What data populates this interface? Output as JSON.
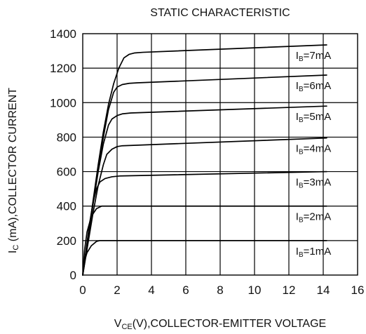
{
  "chart_data": {
    "type": "line",
    "title": "STATIC CHARACTERISTIC",
    "xlabel": {
      "main": "V",
      "sub": "CE",
      "rest": "(V),COLLECTOR-EMITTER VOLTAGE"
    },
    "ylabel": {
      "main": "I",
      "sub": "C",
      "rest": " (mA),COLLECTOR CURRENT"
    },
    "xlim": [
      0,
      16
    ],
    "ylim": [
      0,
      1400
    ],
    "x_ticks": [
      0,
      2,
      4,
      6,
      8,
      10,
      12,
      14,
      16
    ],
    "y_ticks": [
      0,
      200,
      400,
      600,
      800,
      1000,
      1200,
      1400
    ],
    "grid": true,
    "series": [
      {
        "name": "IB=1mA",
        "label": {
          "main": "I",
          "sub": "B",
          "rest": "=1mA"
        },
        "x": [
          0,
          0.1,
          0.25,
          0.5,
          0.8,
          1.0,
          1.5,
          14.2
        ],
        "y": [
          0,
          80,
          130,
          170,
          195,
          200,
          200,
          200
        ]
      },
      {
        "name": "IB=2mA",
        "label": {
          "main": "I",
          "sub": "B",
          "rest": "=2mA"
        },
        "x": [
          0,
          0.1,
          0.25,
          0.5,
          0.8,
          1.1,
          1.5,
          14.2
        ],
        "y": [
          0,
          140,
          250,
          340,
          385,
          400,
          400,
          400
        ]
      },
      {
        "name": "IB=3mA",
        "label": {
          "main": "I",
          "sub": "B",
          "rest": "=3mA"
        },
        "x": [
          0,
          0.2,
          0.4,
          0.6,
          0.8,
          1.0,
          1.3,
          1.7,
          2.2,
          14.2
        ],
        "y": [
          0,
          150,
          300,
          420,
          500,
          540,
          560,
          570,
          575,
          600
        ]
      },
      {
        "name": "IB=4mA",
        "label": {
          "main": "I",
          "sub": "B",
          "rest": "=4mA"
        },
        "x": [
          0,
          0.3,
          0.6,
          0.9,
          1.2,
          1.4,
          1.7,
          2.0,
          2.3,
          14.2
        ],
        "y": [
          0,
          180,
          360,
          520,
          640,
          700,
          730,
          745,
          750,
          795
        ]
      },
      {
        "name": "IB=5mA",
        "label": {
          "main": "I",
          "sub": "B",
          "rest": "=5mA"
        },
        "x": [
          0,
          0.3,
          0.6,
          0.9,
          1.2,
          1.5,
          1.7,
          2.0,
          2.3,
          2.8,
          14.2
        ],
        "y": [
          0,
          200,
          410,
          600,
          760,
          870,
          905,
          925,
          935,
          940,
          980
        ]
      },
      {
        "name": "IB=6mA",
        "label": {
          "main": "I",
          "sub": "B",
          "rest": "=6mA"
        },
        "x": [
          0,
          0.3,
          0.6,
          0.9,
          1.2,
          1.5,
          1.8,
          2.0,
          2.3,
          2.7,
          3.2,
          14.2
        ],
        "y": [
          0,
          200,
          420,
          620,
          800,
          960,
          1060,
          1090,
          1105,
          1112,
          1115,
          1160
        ]
      },
      {
        "name": "IB=7mA",
        "label": {
          "main": "I",
          "sub": "B",
          "rest": "=7mA"
        },
        "x": [
          0,
          0.3,
          0.6,
          0.9,
          1.2,
          1.5,
          1.8,
          2.1,
          2.4,
          2.7,
          3.0,
          3.5,
          14.2
        ],
        "y": [
          0,
          210,
          430,
          640,
          830,
          990,
          1110,
          1200,
          1260,
          1280,
          1288,
          1292,
          1335
        ]
      }
    ],
    "label_anchor_x": 12.4
  }
}
